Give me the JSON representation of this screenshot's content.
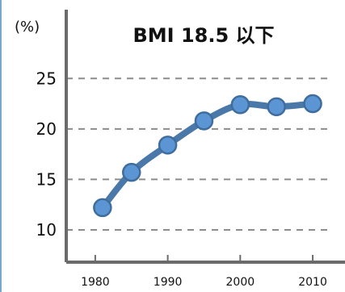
{
  "chart_data": {
    "type": "line",
    "title": "BMI 18.5 以下",
    "unit_label": "(%)",
    "x": [
      1981,
      1985,
      1990,
      1995,
      2000,
      2005,
      2010
    ],
    "series": [
      {
        "values": [
          12.2,
          15.7,
          18.4,
          20.8,
          22.4,
          22.2,
          22.5
        ]
      }
    ],
    "x_ticks": [
      "1980",
      "1990",
      "2000",
      "2010"
    ],
    "y_ticks": [
      "10",
      "15",
      "20",
      "25"
    ],
    "xlim": [
      1976,
      2012
    ],
    "ylim": [
      6.8,
      27.5
    ],
    "grid": true,
    "colors": {
      "line": "#4a78a8",
      "marker_fill": "#5b95d3",
      "marker_stroke": "#3f6d9e",
      "axis": "#6b6b6b",
      "grid": "#8c8c8c"
    }
  }
}
